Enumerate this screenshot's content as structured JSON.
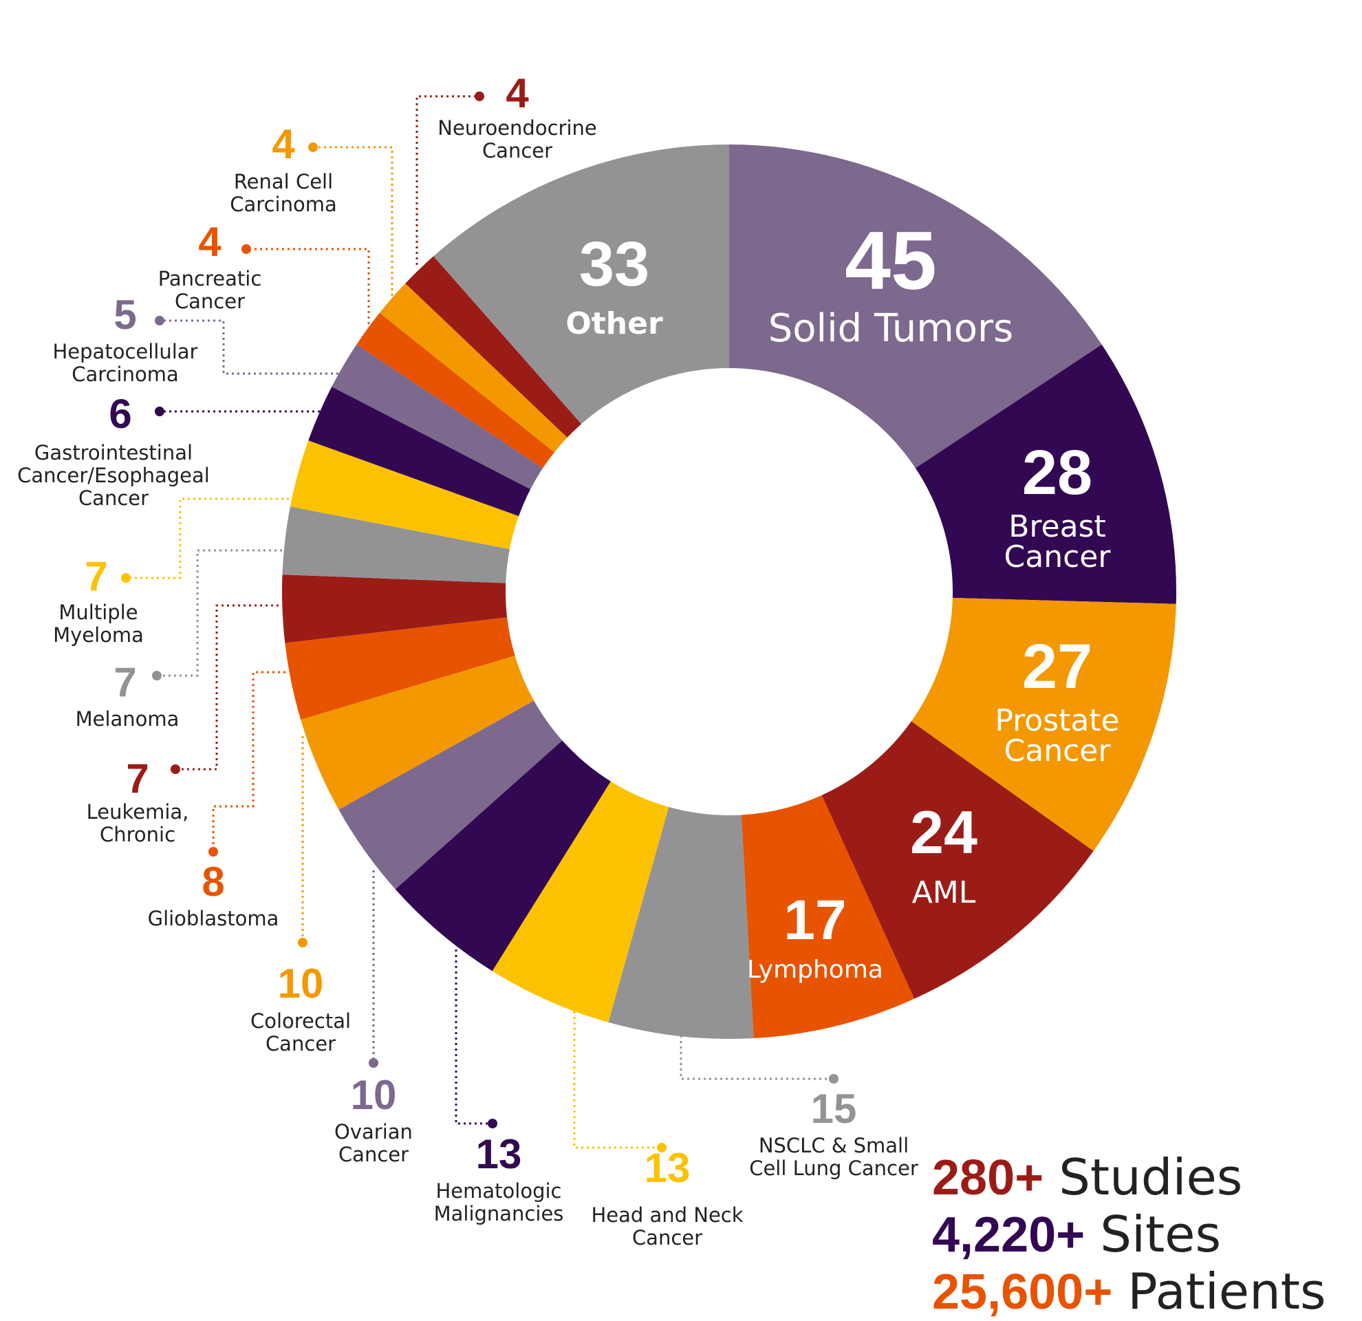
{
  "chart_data": {
    "type": "pie",
    "variant": "donut",
    "title": "",
    "slices": [
      {
        "label": "Solid Tumors",
        "value": 45,
        "color": "#7d688e",
        "placement": "inside"
      },
      {
        "label": "Breast Cancer",
        "value": 28,
        "color": "#320852",
        "placement": "inside"
      },
      {
        "label": "Prostate Cancer",
        "value": 27,
        "color": "#f39800",
        "placement": "inside"
      },
      {
        "label": "AML",
        "value": 24,
        "color": "#9b1c17",
        "placement": "inside"
      },
      {
        "label": "Lymphoma",
        "value": 17,
        "color": "#e85300",
        "placement": "inside"
      },
      {
        "label": "NSCLC & Small Cell Lung Cancer",
        "value": 15,
        "color": "#939396",
        "placement": "outside"
      },
      {
        "label": "Head and Neck Cancer",
        "value": 13,
        "color": "#fcc200",
        "placement": "outside"
      },
      {
        "label": "Hematologic Malignancies",
        "value": 13,
        "color": "#320852",
        "placement": "outside"
      },
      {
        "label": "Ovarian Cancer",
        "value": 10,
        "color": "#7d688e",
        "placement": "outside"
      },
      {
        "label": "Colorectal Cancer",
        "value": 10,
        "color": "#f39800",
        "placement": "outside"
      },
      {
        "label": "Glioblastoma",
        "value": 8,
        "color": "#e85300",
        "placement": "outside"
      },
      {
        "label": "Leukemia, Chronic",
        "value": 7,
        "color": "#9b1c17",
        "placement": "outside"
      },
      {
        "label": "Melanoma",
        "value": 7,
        "color": "#939396",
        "placement": "outside"
      },
      {
        "label": "Multiple Myeloma",
        "value": 7,
        "color": "#fcc200",
        "placement": "outside"
      },
      {
        "label": "Gastrointestinal Cancer/Esophageal Cancer",
        "value": 6,
        "color": "#320852",
        "placement": "outside"
      },
      {
        "label": "Hepatocellular Carcinoma",
        "value": 5,
        "color": "#7d688e",
        "placement": "outside"
      },
      {
        "label": "Pancreatic Cancer",
        "value": 4,
        "color": "#e85300",
        "placement": "outside"
      },
      {
        "label": "Renal Cell Carcinoma",
        "value": 4,
        "color": "#f39800",
        "placement": "outside"
      },
      {
        "label": "Neuroendocrine Cancer",
        "value": 4,
        "color": "#9b1c17",
        "placement": "outside"
      },
      {
        "label": "Other",
        "value": 33,
        "color": "#939396",
        "placement": "inside"
      }
    ],
    "inside_labels": [
      {
        "value": "45",
        "lines": [
          "Solid Tumors"
        ]
      },
      {
        "value": "28",
        "lines": [
          "Breast",
          "Cancer"
        ]
      },
      {
        "value": "27",
        "lines": [
          "Prostate",
          "Cancer"
        ]
      },
      {
        "value": "24",
        "lines": [
          "AML"
        ]
      },
      {
        "value": "17",
        "lines": [
          "Lymphoma"
        ]
      },
      {
        "value": "33",
        "lines": [
          "Other"
        ]
      }
    ],
    "outside_labels": [
      {
        "value": "15",
        "lines": [
          "NSCLC & Small",
          "Cell Lung Cancer"
        ],
        "color": "#939396"
      },
      {
        "value": "13",
        "lines": [
          "Head and Neck",
          "Cancer"
        ],
        "color": "#fcc200"
      },
      {
        "value": "13",
        "lines": [
          "Hematologic",
          "Malignancies"
        ],
        "color": "#320852"
      },
      {
        "value": "10",
        "lines": [
          "Ovarian",
          "Cancer"
        ],
        "color": "#7d688e"
      },
      {
        "value": "10",
        "lines": [
          "Colorectal",
          "Cancer"
        ],
        "color": "#f39800"
      },
      {
        "value": "8",
        "lines": [
          "Glioblastoma"
        ],
        "color": "#e85300"
      },
      {
        "value": "7",
        "lines": [
          "Leukemia,",
          "Chronic"
        ],
        "color": "#9b1c17"
      },
      {
        "value": "7",
        "lines": [
          "Melanoma"
        ],
        "color": "#939396"
      },
      {
        "value": "7",
        "lines": [
          "Multiple",
          "Myeloma"
        ],
        "color": "#fcc200"
      },
      {
        "value": "6",
        "lines": [
          "Gastrointestinal",
          "Cancer/Esophageal",
          "Cancer"
        ],
        "color": "#320852"
      },
      {
        "value": "5",
        "lines": [
          "Hepatocellular",
          "Carcinoma"
        ],
        "color": "#7d688e"
      },
      {
        "value": "4",
        "lines": [
          "Pancreatic",
          "Cancer"
        ],
        "color": "#e85300"
      },
      {
        "value": "4",
        "lines": [
          "Renal Cell",
          "Carcinoma"
        ],
        "color": "#f39800"
      },
      {
        "value": "4",
        "lines": [
          "Neuroendocrine",
          "Cancer"
        ],
        "color": "#9b1c17"
      }
    ]
  },
  "stats": [
    {
      "value": "280+",
      "label": "Studies",
      "color": "#9b1c17"
    },
    {
      "value": "4,220+",
      "label": "Sites",
      "color": "#320852"
    },
    {
      "value": "25,600+",
      "label": "Patients",
      "color": "#e85300"
    }
  ]
}
